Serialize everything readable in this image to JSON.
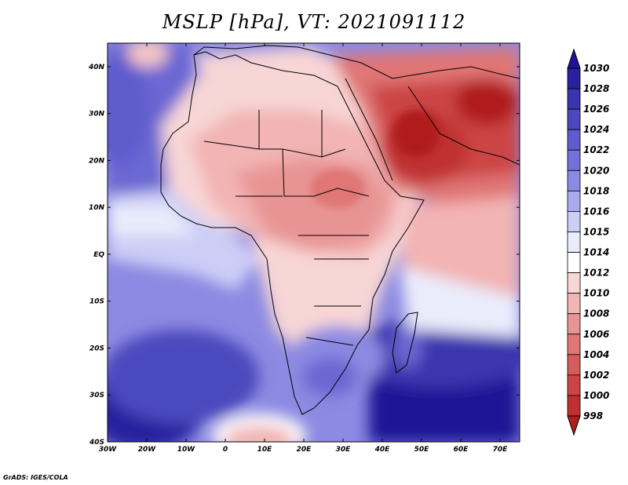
{
  "title": "MSLP [hPa], VT: 2021091112",
  "credit": "GrADS: IGES/COLA",
  "map": {
    "lat_labels": [
      "40N",
      "30N",
      "20N",
      "10N",
      "EQ",
      "10S",
      "20S",
      "30S",
      "40S"
    ],
    "lon_labels": [
      "30W",
      "20W",
      "10W",
      "0",
      "10E",
      "20E",
      "30E",
      "40E",
      "50E",
      "60E",
      "70E"
    ],
    "lat_range": [
      -40,
      45
    ],
    "lon_range": [
      -30,
      75
    ]
  },
  "colorbar": {
    "labels": [
      "1030",
      "1028",
      "1026",
      "1024",
      "1022",
      "1020",
      "1018",
      "1016",
      "1015",
      "1014",
      "1012",
      "1010",
      "1008",
      "1006",
      "1004",
      "1002",
      "1000",
      "998"
    ],
    "colors": [
      "#1e1496",
      "#28209e",
      "#3a34ae",
      "#4c48be",
      "#5e5cce",
      "#7472d8",
      "#8c8ae2",
      "#aaaaee",
      "#cccef6",
      "#eaecfc",
      "#ffffff",
      "#f8d6d6",
      "#f2b4b4",
      "#e89494",
      "#e07676",
      "#d65c5c",
      "#cc4444",
      "#c03030",
      "#b01e1e"
    ]
  }
}
